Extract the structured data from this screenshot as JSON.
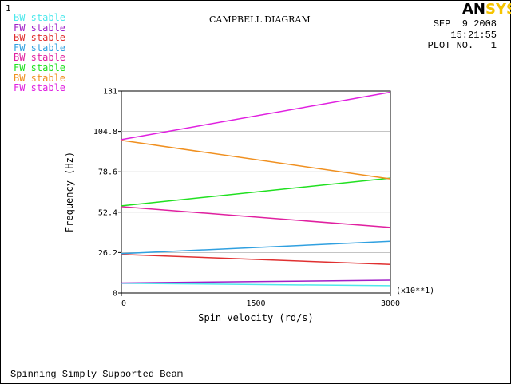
{
  "window_number": "1",
  "header": {
    "title": "CAMPBELL DIAGRAM",
    "logo": {
      "prefix": "AN",
      "suffix": "SYS",
      "prefix_color": "#000000",
      "suffix_color": "#f5c400"
    },
    "date": "SEP  9 2008",
    "time": "15:21:55",
    "plot_no": "PLOT NO.   1"
  },
  "footer": {
    "subtitle": "Spinning Simply Supported Beam"
  },
  "legend": [
    {
      "label": "BW stable",
      "color": "#4ee8ec"
    },
    {
      "label": "FW stable",
      "color": "#a020c8"
    },
    {
      "label": "BW stable",
      "color": "#e03030"
    },
    {
      "label": "FW stable",
      "color": "#30a0e0"
    },
    {
      "label": "BW stable",
      "color": "#e020a0"
    },
    {
      "label": "FW stable",
      "color": "#20e020"
    },
    {
      "label": "BW stable",
      "color": "#f09020"
    },
    {
      "label": "FW stable",
      "color": "#e020e0"
    }
  ],
  "chart_data": {
    "type": "line",
    "title": "CAMPBELL DIAGRAM",
    "xlabel": "Spin velocity (rd/s)",
    "ylabel": "Frequency (Hz)",
    "x_multiplier": "(x10**1)",
    "xlim": [
      0,
      3000
    ],
    "ylim": [
      0,
      131
    ],
    "xticks": [
      0,
      1500,
      3000
    ],
    "xtick_labels": [
      "0",
      "1500",
      "3000"
    ],
    "yticks": [
      0,
      26.2,
      52.4,
      78.6,
      104.8,
      131
    ],
    "ytick_labels": [
      "0",
      "26.2",
      "52.4",
      "78.6",
      "104.8",
      "131"
    ],
    "grid": true,
    "legend_position": "top-left",
    "x": [
      0,
      3000
    ],
    "series": [
      {
        "name": "BW stable",
        "color": "#4ee8ec",
        "values": [
          6.3,
          4.7
        ]
      },
      {
        "name": "FW stable",
        "color": "#a020c8",
        "values": [
          6.5,
          8.3
        ]
      },
      {
        "name": "BW stable",
        "color": "#e03030",
        "values": [
          25.0,
          18.5
        ]
      },
      {
        "name": "FW stable",
        "color": "#30a0e0",
        "values": [
          25.5,
          33.5
        ]
      },
      {
        "name": "BW stable",
        "color": "#e020a0",
        "values": [
          56.0,
          42.5
        ]
      },
      {
        "name": "FW stable",
        "color": "#20e020",
        "values": [
          56.5,
          74.5
        ]
      },
      {
        "name": "BW stable",
        "color": "#f09020",
        "values": [
          99.0,
          74.0
        ]
      },
      {
        "name": "FW stable",
        "color": "#e020e0",
        "values": [
          99.5,
          130.2
        ]
      }
    ]
  }
}
